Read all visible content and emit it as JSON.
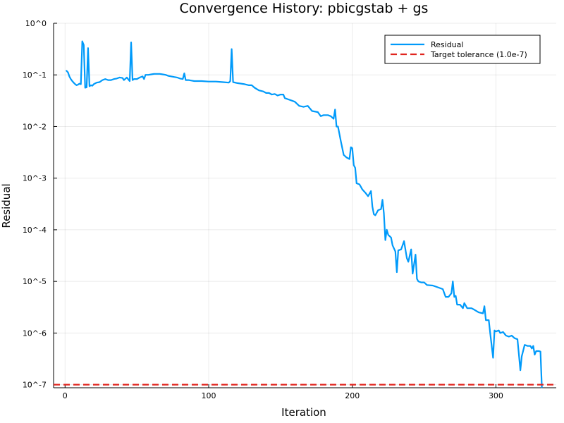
{
  "chart_data": {
    "type": "line",
    "title": "Convergence History: pbicgstab + gs",
    "xlabel": "Iteration",
    "ylabel": "Residual",
    "y_scale": "log10",
    "xlim": [
      -8,
      342
    ],
    "ylim": [
      -7.06,
      0
    ],
    "x_ticks": [
      {
        "value": 0,
        "label": "0"
      },
      {
        "value": 100,
        "label": "100"
      },
      {
        "value": 200,
        "label": "200"
      },
      {
        "value": 300,
        "label": "300"
      }
    ],
    "y_ticks": [
      {
        "value": 0,
        "label": "10^0"
      },
      {
        "value": -1,
        "label": "10^-1"
      },
      {
        "value": -2,
        "label": "10^-2"
      },
      {
        "value": -3,
        "label": "10^-3"
      },
      {
        "value": -4,
        "label": "10^-4"
      },
      {
        "value": -5,
        "label": "10^-5"
      },
      {
        "value": -6,
        "label": "10^-6"
      },
      {
        "value": -7,
        "label": "10^-7"
      }
    ],
    "grid": true,
    "legend_position": "top-right",
    "series": [
      {
        "name": "Residual",
        "color": "#009AFA",
        "style": "solid",
        "points": [
          [
            1,
            -0.92
          ],
          [
            2,
            -0.95
          ],
          [
            3,
            -1.03
          ],
          [
            4,
            -1.08
          ],
          [
            5,
            -1.12
          ],
          [
            6,
            -1.15
          ],
          [
            7,
            -1.18
          ],
          [
            8,
            -1.2
          ],
          [
            9,
            -1.19
          ],
          [
            10,
            -1.17
          ],
          [
            11,
            -1.18
          ],
          [
            12,
            -0.35
          ],
          [
            13,
            -0.42
          ],
          [
            14,
            -1.25
          ],
          [
            15,
            -1.24
          ],
          [
            16,
            -0.48
          ],
          [
            17,
            -1.22
          ],
          [
            18,
            -1.2
          ],
          [
            19,
            -1.21
          ],
          [
            20,
            -1.18
          ],
          [
            22,
            -1.15
          ],
          [
            24,
            -1.14
          ],
          [
            26,
            -1.1
          ],
          [
            28,
            -1.08
          ],
          [
            30,
            -1.1
          ],
          [
            32,
            -1.1
          ],
          [
            34,
            -1.08
          ],
          [
            36,
            -1.07
          ],
          [
            38,
            -1.05
          ],
          [
            40,
            -1.06
          ],
          [
            41,
            -1.1
          ],
          [
            43,
            -1.05
          ],
          [
            45,
            -1.12
          ],
          [
            46,
            -0.37
          ],
          [
            47,
            -1.1
          ],
          [
            48,
            -1.08
          ],
          [
            50,
            -1.08
          ],
          [
            52,
            -1.05
          ],
          [
            54,
            -1.03
          ],
          [
            55,
            -1.08
          ],
          [
            56,
            -1.0
          ],
          [
            58,
            -1.0
          ],
          [
            60,
            -0.99
          ],
          [
            62,
            -0.98
          ],
          [
            64,
            -0.98
          ],
          [
            66,
            -0.98
          ],
          [
            68,
            -0.99
          ],
          [
            70,
            -1.0
          ],
          [
            72,
            -1.02
          ],
          [
            74,
            -1.03
          ],
          [
            76,
            -1.04
          ],
          [
            78,
            -1.05
          ],
          [
            80,
            -1.07
          ],
          [
            82,
            -1.08
          ],
          [
            83,
            -0.97
          ],
          [
            84,
            -1.1
          ],
          [
            86,
            -1.1
          ],
          [
            88,
            -1.11
          ],
          [
            90,
            -1.12
          ],
          [
            95,
            -1.12
          ],
          [
            100,
            -1.13
          ],
          [
            105,
            -1.13
          ],
          [
            110,
            -1.14
          ],
          [
            114,
            -1.15
          ],
          [
            115,
            -1.12
          ],
          [
            116,
            -0.5
          ],
          [
            117,
            -1.14
          ],
          [
            120,
            -1.16
          ],
          [
            125,
            -1.18
          ],
          [
            128,
            -1.2
          ],
          [
            130,
            -1.2
          ],
          [
            132,
            -1.25
          ],
          [
            135,
            -1.3
          ],
          [
            138,
            -1.32
          ],
          [
            140,
            -1.35
          ],
          [
            142,
            -1.35
          ],
          [
            144,
            -1.38
          ],
          [
            146,
            -1.37
          ],
          [
            148,
            -1.4
          ],
          [
            150,
            -1.38
          ],
          [
            152,
            -1.38
          ],
          [
            153,
            -1.45
          ],
          [
            156,
            -1.48
          ],
          [
            158,
            -1.5
          ],
          [
            160,
            -1.52
          ],
          [
            163,
            -1.6
          ],
          [
            166,
            -1.62
          ],
          [
            169,
            -1.6
          ],
          [
            172,
            -1.7
          ],
          [
            176,
            -1.72
          ],
          [
            178,
            -1.8
          ],
          [
            180,
            -1.78
          ],
          [
            183,
            -1.78
          ],
          [
            185,
            -1.8
          ],
          [
            187,
            -1.85
          ],
          [
            188,
            -1.67
          ],
          [
            189,
            -2.0
          ],
          [
            190,
            -2.0
          ],
          [
            192,
            -2.28
          ],
          [
            194,
            -2.55
          ],
          [
            196,
            -2.6
          ],
          [
            198,
            -2.63
          ],
          [
            199,
            -2.4
          ],
          [
            200,
            -2.42
          ],
          [
            201,
            -2.75
          ],
          [
            202,
            -2.8
          ],
          [
            203,
            -3.1
          ],
          [
            205,
            -3.12
          ],
          [
            207,
            -3.22
          ],
          [
            209,
            -3.28
          ],
          [
            211,
            -3.35
          ],
          [
            213,
            -3.25
          ],
          [
            214,
            -3.55
          ],
          [
            215,
            -3.7
          ],
          [
            216,
            -3.72
          ],
          [
            218,
            -3.62
          ],
          [
            220,
            -3.6
          ],
          [
            221,
            -3.42
          ],
          [
            222,
            -3.68
          ],
          [
            223,
            -4.2
          ],
          [
            224,
            -4.0
          ],
          [
            225,
            -4.1
          ],
          [
            227,
            -4.15
          ],
          [
            228,
            -4.3
          ],
          [
            230,
            -4.42
          ],
          [
            231,
            -4.82
          ],
          [
            232,
            -4.4
          ],
          [
            234,
            -4.38
          ],
          [
            236,
            -4.22
          ],
          [
            238,
            -4.55
          ],
          [
            239,
            -4.62
          ],
          [
            240,
            -4.5
          ],
          [
            241,
            -4.38
          ],
          [
            242,
            -4.85
          ],
          [
            244,
            -4.48
          ],
          [
            245,
            -4.95
          ],
          [
            246,
            -5.0
          ],
          [
            248,
            -5.02
          ],
          [
            250,
            -5.02
          ],
          [
            252,
            -5.07
          ],
          [
            256,
            -5.08
          ],
          [
            260,
            -5.12
          ],
          [
            263,
            -5.15
          ],
          [
            265,
            -5.3
          ],
          [
            267,
            -5.3
          ],
          [
            269,
            -5.23
          ],
          [
            270,
            -5.0
          ],
          [
            271,
            -5.3
          ],
          [
            272,
            -5.28
          ],
          [
            273,
            -5.45
          ],
          [
            275,
            -5.45
          ],
          [
            277,
            -5.52
          ],
          [
            278,
            -5.42
          ],
          [
            280,
            -5.52
          ],
          [
            283,
            -5.52
          ],
          [
            285,
            -5.55
          ],
          [
            288,
            -5.6
          ],
          [
            291,
            -5.62
          ],
          [
            292,
            -5.48
          ],
          [
            293,
            -5.75
          ],
          [
            295,
            -5.75
          ],
          [
            296,
            -6.0
          ],
          [
            298,
            -6.48
          ],
          [
            299,
            -5.95
          ],
          [
            300,
            -5.97
          ],
          [
            302,
            -5.95
          ],
          [
            303,
            -6.0
          ],
          [
            305,
            -5.98
          ],
          [
            307,
            -6.05
          ],
          [
            309,
            -6.07
          ],
          [
            311,
            -6.05
          ],
          [
            313,
            -6.1
          ],
          [
            315,
            -6.12
          ],
          [
            317,
            -6.72
          ],
          [
            318,
            -6.45
          ],
          [
            320,
            -6.23
          ],
          [
            322,
            -6.25
          ],
          [
            324,
            -6.25
          ],
          [
            325,
            -6.3
          ],
          [
            326,
            -6.25
          ],
          [
            327,
            -6.42
          ],
          [
            328,
            -6.35
          ],
          [
            330,
            -6.35
          ],
          [
            331,
            -6.36
          ],
          [
            332,
            -7.05
          ]
        ]
      },
      {
        "name": "Target tolerance (1.0e-7)",
        "color": "#E0251F",
        "style": "dashed",
        "points": [
          [
            -8,
            -7
          ],
          [
            342,
            -7
          ]
        ]
      }
    ]
  }
}
